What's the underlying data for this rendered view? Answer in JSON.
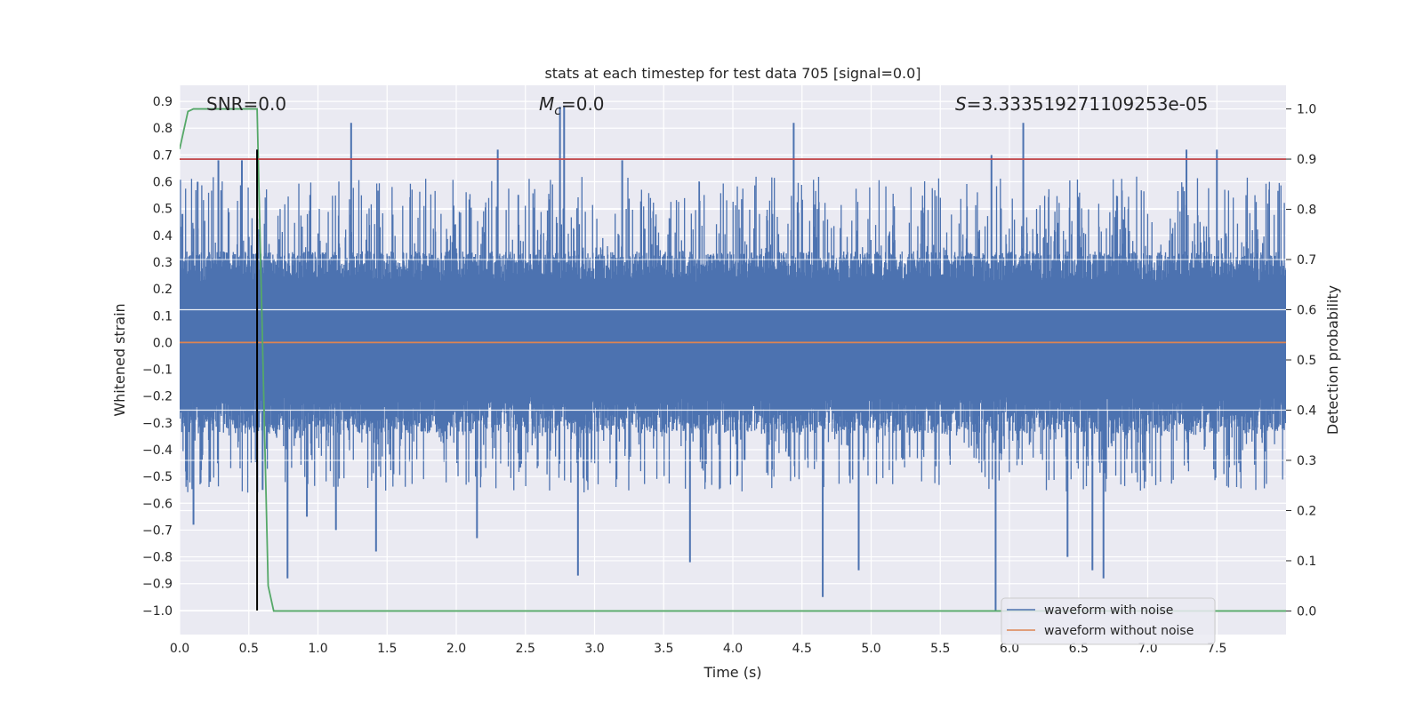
{
  "chart_data": {
    "type": "line",
    "title": "stats at each timestep for test data 705 [signal=0.0]",
    "xlabel": "Time (s)",
    "ylabel_left": "Whitened strain",
    "ylabel_right": "Detection probability",
    "xlim": [
      0.0,
      8.0
    ],
    "ylim_left": [
      -1.09,
      0.96
    ],
    "ylim_right": [
      -0.047,
      1.047
    ],
    "x_ticks": [
      "0.0",
      "0.5",
      "1.0",
      "1.5",
      "2.0",
      "2.5",
      "3.0",
      "3.5",
      "4.0",
      "4.5",
      "5.0",
      "5.5",
      "6.0",
      "6.5",
      "7.0",
      "7.5"
    ],
    "y_left_ticks": [
      "0.9",
      "0.8",
      "0.7",
      "0.6",
      "0.5",
      "0.4",
      "0.3",
      "0.2",
      "0.1",
      "0.0",
      "−0.1",
      "−0.2",
      "−0.3",
      "−0.4",
      "−0.5",
      "−0.6",
      "−0.7",
      "−0.8",
      "−0.9",
      "−1.0"
    ],
    "y_right_ticks": [
      "1.0",
      "0.9",
      "0.8",
      "0.7",
      "0.6",
      "0.5",
      "0.4",
      "0.3",
      "0.2",
      "0.1",
      "0.0"
    ],
    "grid": true,
    "annotations": {
      "snr": "SNR=0.0",
      "mc_symbol": "M",
      "mc_sub": "c",
      "mc_value": "=0.0",
      "s_symbol": "S",
      "s_value": "=3.333519271109253e-05"
    },
    "legend": {
      "placement": "lower-right",
      "entries": [
        "waveform with noise",
        "waveform without noise"
      ]
    },
    "series": [
      {
        "name": "waveform with noise",
        "axis": "left",
        "color": "#4c72b0",
        "style": "dense noise, envelope about ±0.3 to ±0.5 with spikes",
        "spikes": [
          {
            "x": 0.02,
            "y": 0.48
          },
          {
            "x": 0.1,
            "y": -0.68
          },
          {
            "x": 0.13,
            "y": 0.6
          },
          {
            "x": 0.22,
            "y": -0.52
          },
          {
            "x": 0.28,
            "y": 0.68
          },
          {
            "x": 0.45,
            "y": 0.68
          },
          {
            "x": 0.56,
            "y": 0.72
          },
          {
            "x": 0.6,
            "y": -0.55
          },
          {
            "x": 0.78,
            "y": -0.88
          },
          {
            "x": 0.92,
            "y": -0.65
          },
          {
            "x": 1.13,
            "y": -0.7
          },
          {
            "x": 1.24,
            "y": 0.82
          },
          {
            "x": 1.42,
            "y": -0.78
          },
          {
            "x": 2.15,
            "y": -0.73
          },
          {
            "x": 2.3,
            "y": 0.72
          },
          {
            "x": 2.75,
            "y": 0.88
          },
          {
            "x": 2.78,
            "y": 0.88
          },
          {
            "x": 2.88,
            "y": -0.87
          },
          {
            "x": 3.2,
            "y": 0.68
          },
          {
            "x": 3.69,
            "y": -0.82
          },
          {
            "x": 4.44,
            "y": 0.82
          },
          {
            "x": 4.65,
            "y": -0.95
          },
          {
            "x": 4.91,
            "y": -0.85
          },
          {
            "x": 5.87,
            "y": 0.7
          },
          {
            "x": 5.9,
            "y": -1.0
          },
          {
            "x": 6.1,
            "y": 0.82
          },
          {
            "x": 6.42,
            "y": -0.8
          },
          {
            "x": 6.6,
            "y": -0.85
          },
          {
            "x": 6.68,
            "y": -0.88
          },
          {
            "x": 7.28,
            "y": 0.72
          },
          {
            "x": 7.5,
            "y": 0.72
          }
        ]
      },
      {
        "name": "waveform without noise",
        "axis": "left",
        "color": "#dd8452",
        "x": [
          0.0,
          8.0
        ],
        "y": [
          0.0,
          0.0
        ]
      },
      {
        "axis": "right",
        "color": "#55a868",
        "x": [
          0.0,
          0.06,
          0.1,
          0.14,
          0.56,
          0.64,
          0.68,
          8.0
        ],
        "y": [
          0.92,
          0.995,
          1.0,
          1.0,
          1.0,
          0.05,
          0.0,
          0.0
        ]
      },
      {
        "axis": "right",
        "color": "#c44e52",
        "x": [
          0.0,
          8.0
        ],
        "y": [
          0.9,
          0.9
        ]
      },
      {
        "axis": "left",
        "color": "#000000",
        "x": [
          0.56,
          0.56
        ],
        "y": [
          0.72,
          -1.0
        ]
      }
    ]
  }
}
